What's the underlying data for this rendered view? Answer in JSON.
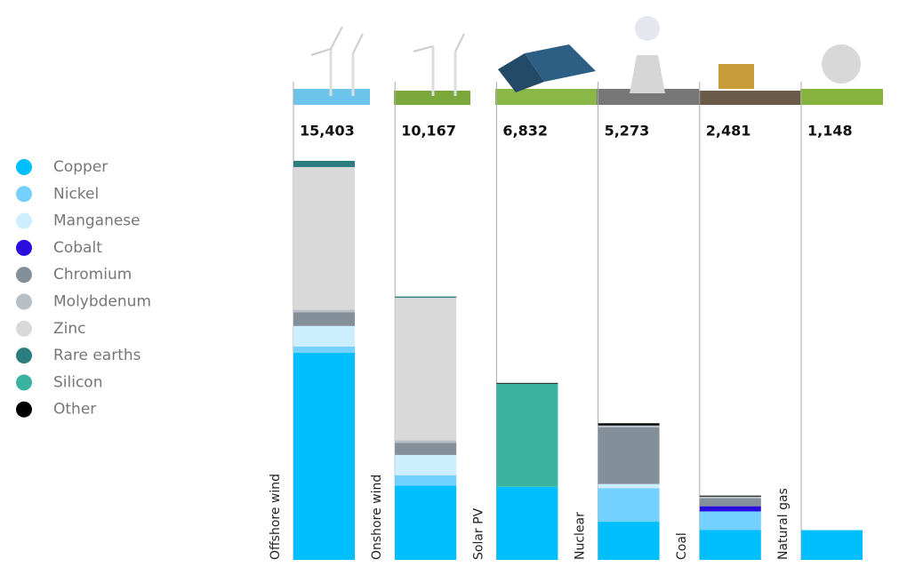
{
  "chart_data": {
    "type": "bar",
    "stacked": true,
    "categories": [
      "Offshore wind",
      "Onshore wind",
      "Solar PV",
      "Nuclear",
      "Coal",
      "Natural gas"
    ],
    "totals": [
      15403,
      10167,
      6832,
      5273,
      2481,
      1148
    ],
    "total_labels": [
      "15,403",
      "10,167",
      "6,832",
      "5,273",
      "2,481",
      "1,148"
    ],
    "series": [
      {
        "name": "Copper",
        "color": "#00bfff",
        "values": [
          8000,
          2866,
          2822,
          1473,
          1150,
          1148
        ]
      },
      {
        "name": "Nickel",
        "color": "#73d0ff",
        "values": [
          240,
          404,
          0,
          1297,
          721,
          0
        ]
      },
      {
        "name": "Manganese",
        "color": "#cdeeff",
        "values": [
          790,
          780,
          0,
          160,
          0,
          0
        ]
      },
      {
        "name": "Cobalt",
        "color": "#2a0ee0",
        "values": [
          0,
          0,
          0,
          0,
          200,
          0
        ]
      },
      {
        "name": "Chromium",
        "color": "#838f99",
        "values": [
          525,
          470,
          0,
          2190,
          308,
          0
        ]
      },
      {
        "name": "Molybdenum",
        "color": "#b8bfc5",
        "values": [
          109,
          99,
          0,
          70,
          66,
          0
        ]
      },
      {
        "name": "Zinc",
        "color": "#d9d9d9",
        "values": [
          5500,
          5500,
          0,
          0,
          0,
          0
        ]
      },
      {
        "name": "Rare earths",
        "color": "#2b7d80",
        "values": [
          239,
          48,
          0,
          0,
          0,
          0
        ]
      },
      {
        "name": "Silicon",
        "color": "#3ab4a1",
        "values": [
          0,
          0,
          3980,
          0,
          0,
          0
        ]
      },
      {
        "name": "Other",
        "color": "#000000",
        "values": [
          0,
          0,
          30,
          83,
          36,
          0
        ]
      }
    ]
  }
}
